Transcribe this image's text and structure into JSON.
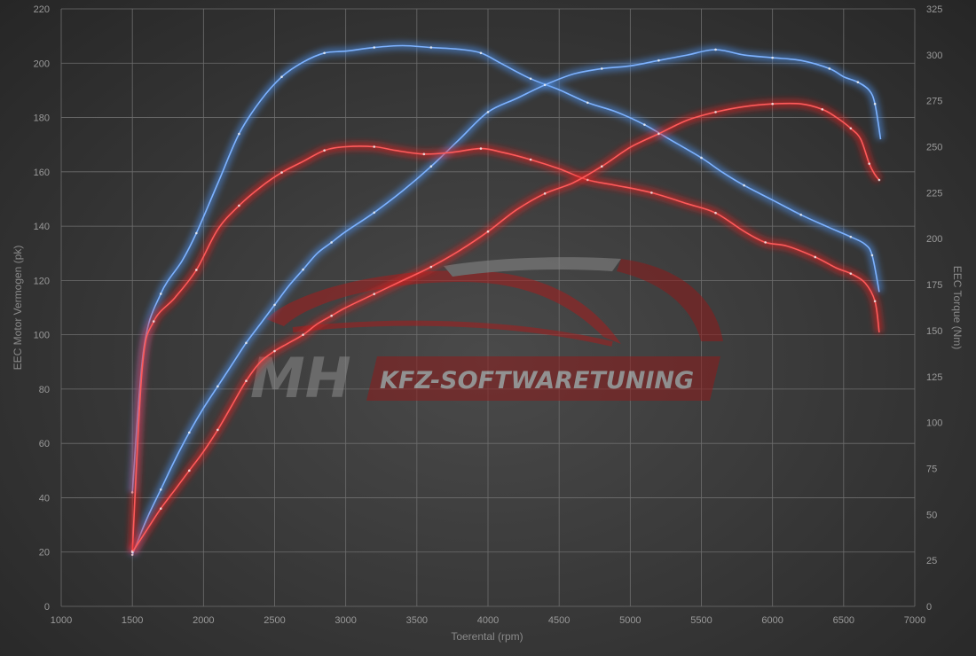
{
  "chart_data": {
    "type": "line",
    "xlabel": "Toerental (rpm)",
    "ylabel_left": "EEC Motor Vermogen (pk)",
    "ylabel_right": "EEC Torque (Nm)",
    "xlim": [
      1000,
      7000
    ],
    "ylim_left": [
      0,
      220
    ],
    "ylim_right": [
      0,
      325
    ],
    "x_ticks": [
      "1000",
      "1500",
      "2000",
      "2500",
      "3000",
      "3500",
      "4000",
      "4500",
      "5000",
      "5500",
      "6000",
      "6500",
      "7000"
    ],
    "y_left_ticks": [
      "0",
      "20",
      "40",
      "60",
      "80",
      "100",
      "120",
      "140",
      "160",
      "180",
      "200",
      "220"
    ],
    "y_right_ticks": [
      "0",
      "25",
      "50",
      "75",
      "100",
      "125",
      "150",
      "175",
      "200",
      "225",
      "250",
      "275",
      "300",
      "325"
    ],
    "grid": true,
    "watermark": {
      "logo": "MH",
      "text": "KFZ-SOFTWARETUNING"
    },
    "colors": {
      "tuned": "#4a8ee8",
      "stock": "#ee2222"
    },
    "series": [
      {
        "axis": "right",
        "color": "#4a8ee8",
        "points": [
          [
            1500,
            62
          ],
          [
            1580,
            140
          ],
          [
            1700,
            170
          ],
          [
            1850,
            188
          ],
          [
            1950,
            203
          ],
          [
            2100,
            230
          ],
          [
            2250,
            257
          ],
          [
            2400,
            275
          ],
          [
            2550,
            288
          ],
          [
            2700,
            296
          ],
          [
            2850,
            301
          ],
          [
            3000,
            302
          ],
          [
            3200,
            304
          ],
          [
            3400,
            305
          ],
          [
            3600,
            304
          ],
          [
            3800,
            303
          ],
          [
            3950,
            301
          ],
          [
            4100,
            295
          ],
          [
            4300,
            287
          ],
          [
            4500,
            281
          ],
          [
            4700,
            274
          ],
          [
            4900,
            269
          ],
          [
            5100,
            262
          ],
          [
            5300,
            253
          ],
          [
            5500,
            244
          ],
          [
            5650,
            236
          ],
          [
            5800,
            229
          ],
          [
            6000,
            221
          ],
          [
            6200,
            213
          ],
          [
            6400,
            206
          ],
          [
            6550,
            201
          ],
          [
            6650,
            197
          ],
          [
            6700,
            191
          ],
          [
            6750,
            171
          ]
        ]
      },
      {
        "axis": "left",
        "color": "#4a8ee8",
        "points": [
          [
            1500,
            19
          ],
          [
            1600,
            32
          ],
          [
            1700,
            43
          ],
          [
            1800,
            54
          ],
          [
            1900,
            64
          ],
          [
            2000,
            73
          ],
          [
            2100,
            81
          ],
          [
            2200,
            89
          ],
          [
            2300,
            97
          ],
          [
            2400,
            104
          ],
          [
            2500,
            111
          ],
          [
            2600,
            118
          ],
          [
            2700,
            124
          ],
          [
            2800,
            130
          ],
          [
            2900,
            134
          ],
          [
            3000,
            138
          ],
          [
            3200,
            145
          ],
          [
            3400,
            153
          ],
          [
            3600,
            162
          ],
          [
            3800,
            172
          ],
          [
            4000,
            182
          ],
          [
            4200,
            187
          ],
          [
            4400,
            192
          ],
          [
            4600,
            196
          ],
          [
            4800,
            198
          ],
          [
            5000,
            199
          ],
          [
            5200,
            201
          ],
          [
            5400,
            203
          ],
          [
            5600,
            205
          ],
          [
            5800,
            203
          ],
          [
            6000,
            202
          ],
          [
            6200,
            201
          ],
          [
            6400,
            198
          ],
          [
            6500,
            195
          ],
          [
            6600,
            193
          ],
          [
            6680,
            190
          ],
          [
            6720,
            185
          ],
          [
            6760,
            172
          ]
        ]
      },
      {
        "axis": "right",
        "color": "#ee2222",
        "points": [
          [
            1500,
            30
          ],
          [
            1570,
            130
          ],
          [
            1650,
            155
          ],
          [
            1800,
            168
          ],
          [
            1950,
            183
          ],
          [
            2100,
            205
          ],
          [
            2250,
            218
          ],
          [
            2400,
            228
          ],
          [
            2550,
            236
          ],
          [
            2700,
            242
          ],
          [
            2850,
            248
          ],
          [
            3000,
            250
          ],
          [
            3200,
            250
          ],
          [
            3350,
            248
          ],
          [
            3550,
            246
          ],
          [
            3750,
            247
          ],
          [
            3950,
            249
          ],
          [
            4100,
            247
          ],
          [
            4300,
            243
          ],
          [
            4500,
            238
          ],
          [
            4700,
            232
          ],
          [
            4900,
            229
          ],
          [
            5150,
            225
          ],
          [
            5400,
            219
          ],
          [
            5600,
            214
          ],
          [
            5800,
            204
          ],
          [
            5950,
            198
          ],
          [
            6100,
            196
          ],
          [
            6300,
            190
          ],
          [
            6450,
            184
          ],
          [
            6550,
            181
          ],
          [
            6650,
            176
          ],
          [
            6720,
            166
          ],
          [
            6750,
            149
          ]
        ]
      },
      {
        "axis": "left",
        "color": "#ee2222",
        "points": [
          [
            1500,
            20
          ],
          [
            1600,
            28
          ],
          [
            1700,
            36
          ],
          [
            1800,
            43
          ],
          [
            1900,
            50
          ],
          [
            2000,
            57
          ],
          [
            2100,
            65
          ],
          [
            2200,
            74
          ],
          [
            2300,
            83
          ],
          [
            2400,
            90
          ],
          [
            2500,
            94
          ],
          [
            2600,
            97
          ],
          [
            2700,
            100
          ],
          [
            2800,
            104
          ],
          [
            2900,
            107
          ],
          [
            3000,
            110
          ],
          [
            3200,
            115
          ],
          [
            3400,
            120
          ],
          [
            3600,
            125
          ],
          [
            3800,
            131
          ],
          [
            4000,
            138
          ],
          [
            4200,
            146
          ],
          [
            4400,
            152
          ],
          [
            4600,
            156
          ],
          [
            4800,
            162
          ],
          [
            5000,
            169
          ],
          [
            5200,
            174
          ],
          [
            5400,
            179
          ],
          [
            5600,
            182
          ],
          [
            5800,
            184
          ],
          [
            6000,
            185
          ],
          [
            6200,
            185
          ],
          [
            6350,
            183
          ],
          [
            6450,
            180
          ],
          [
            6550,
            176
          ],
          [
            6620,
            172
          ],
          [
            6680,
            163
          ],
          [
            6720,
            159
          ],
          [
            6750,
            157
          ]
        ]
      }
    ]
  }
}
